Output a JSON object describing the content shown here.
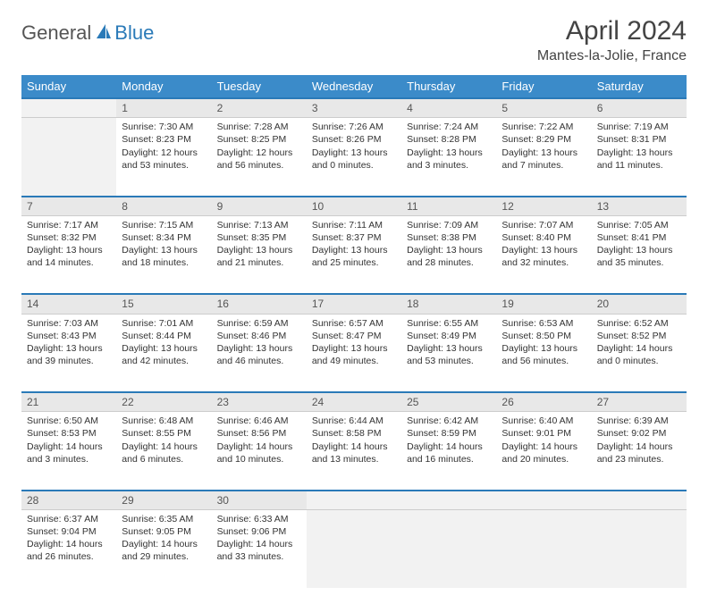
{
  "logo": {
    "text_general": "General",
    "text_blue": "Blue"
  },
  "title": "April 2024",
  "location": "Mantes-la-Jolie, France",
  "colors": {
    "header_bg": "#3b8bc9",
    "accent": "#2a7ab8",
    "daynum_bg": "#e8e8e8",
    "empty_bg": "#f2f2f2"
  },
  "weekdays": [
    "Sunday",
    "Monday",
    "Tuesday",
    "Wednesday",
    "Thursday",
    "Friday",
    "Saturday"
  ],
  "weeks": [
    [
      null,
      {
        "n": "1",
        "sr": "Sunrise: 7:30 AM",
        "ss": "Sunset: 8:23 PM",
        "dl1": "Daylight: 12 hours",
        "dl2": "and 53 minutes."
      },
      {
        "n": "2",
        "sr": "Sunrise: 7:28 AM",
        "ss": "Sunset: 8:25 PM",
        "dl1": "Daylight: 12 hours",
        "dl2": "and 56 minutes."
      },
      {
        "n": "3",
        "sr": "Sunrise: 7:26 AM",
        "ss": "Sunset: 8:26 PM",
        "dl1": "Daylight: 13 hours",
        "dl2": "and 0 minutes."
      },
      {
        "n": "4",
        "sr": "Sunrise: 7:24 AM",
        "ss": "Sunset: 8:28 PM",
        "dl1": "Daylight: 13 hours",
        "dl2": "and 3 minutes."
      },
      {
        "n": "5",
        "sr": "Sunrise: 7:22 AM",
        "ss": "Sunset: 8:29 PM",
        "dl1": "Daylight: 13 hours",
        "dl2": "and 7 minutes."
      },
      {
        "n": "6",
        "sr": "Sunrise: 7:19 AM",
        "ss": "Sunset: 8:31 PM",
        "dl1": "Daylight: 13 hours",
        "dl2": "and 11 minutes."
      }
    ],
    [
      {
        "n": "7",
        "sr": "Sunrise: 7:17 AM",
        "ss": "Sunset: 8:32 PM",
        "dl1": "Daylight: 13 hours",
        "dl2": "and 14 minutes."
      },
      {
        "n": "8",
        "sr": "Sunrise: 7:15 AM",
        "ss": "Sunset: 8:34 PM",
        "dl1": "Daylight: 13 hours",
        "dl2": "and 18 minutes."
      },
      {
        "n": "9",
        "sr": "Sunrise: 7:13 AM",
        "ss": "Sunset: 8:35 PM",
        "dl1": "Daylight: 13 hours",
        "dl2": "and 21 minutes."
      },
      {
        "n": "10",
        "sr": "Sunrise: 7:11 AM",
        "ss": "Sunset: 8:37 PM",
        "dl1": "Daylight: 13 hours",
        "dl2": "and 25 minutes."
      },
      {
        "n": "11",
        "sr": "Sunrise: 7:09 AM",
        "ss": "Sunset: 8:38 PM",
        "dl1": "Daylight: 13 hours",
        "dl2": "and 28 minutes."
      },
      {
        "n": "12",
        "sr": "Sunrise: 7:07 AM",
        "ss": "Sunset: 8:40 PM",
        "dl1": "Daylight: 13 hours",
        "dl2": "and 32 minutes."
      },
      {
        "n": "13",
        "sr": "Sunrise: 7:05 AM",
        "ss": "Sunset: 8:41 PM",
        "dl1": "Daylight: 13 hours",
        "dl2": "and 35 minutes."
      }
    ],
    [
      {
        "n": "14",
        "sr": "Sunrise: 7:03 AM",
        "ss": "Sunset: 8:43 PM",
        "dl1": "Daylight: 13 hours",
        "dl2": "and 39 minutes."
      },
      {
        "n": "15",
        "sr": "Sunrise: 7:01 AM",
        "ss": "Sunset: 8:44 PM",
        "dl1": "Daylight: 13 hours",
        "dl2": "and 42 minutes."
      },
      {
        "n": "16",
        "sr": "Sunrise: 6:59 AM",
        "ss": "Sunset: 8:46 PM",
        "dl1": "Daylight: 13 hours",
        "dl2": "and 46 minutes."
      },
      {
        "n": "17",
        "sr": "Sunrise: 6:57 AM",
        "ss": "Sunset: 8:47 PM",
        "dl1": "Daylight: 13 hours",
        "dl2": "and 49 minutes."
      },
      {
        "n": "18",
        "sr": "Sunrise: 6:55 AM",
        "ss": "Sunset: 8:49 PM",
        "dl1": "Daylight: 13 hours",
        "dl2": "and 53 minutes."
      },
      {
        "n": "19",
        "sr": "Sunrise: 6:53 AM",
        "ss": "Sunset: 8:50 PM",
        "dl1": "Daylight: 13 hours",
        "dl2": "and 56 minutes."
      },
      {
        "n": "20",
        "sr": "Sunrise: 6:52 AM",
        "ss": "Sunset: 8:52 PM",
        "dl1": "Daylight: 14 hours",
        "dl2": "and 0 minutes."
      }
    ],
    [
      {
        "n": "21",
        "sr": "Sunrise: 6:50 AM",
        "ss": "Sunset: 8:53 PM",
        "dl1": "Daylight: 14 hours",
        "dl2": "and 3 minutes."
      },
      {
        "n": "22",
        "sr": "Sunrise: 6:48 AM",
        "ss": "Sunset: 8:55 PM",
        "dl1": "Daylight: 14 hours",
        "dl2": "and 6 minutes."
      },
      {
        "n": "23",
        "sr": "Sunrise: 6:46 AM",
        "ss": "Sunset: 8:56 PM",
        "dl1": "Daylight: 14 hours",
        "dl2": "and 10 minutes."
      },
      {
        "n": "24",
        "sr": "Sunrise: 6:44 AM",
        "ss": "Sunset: 8:58 PM",
        "dl1": "Daylight: 14 hours",
        "dl2": "and 13 minutes."
      },
      {
        "n": "25",
        "sr": "Sunrise: 6:42 AM",
        "ss": "Sunset: 8:59 PM",
        "dl1": "Daylight: 14 hours",
        "dl2": "and 16 minutes."
      },
      {
        "n": "26",
        "sr": "Sunrise: 6:40 AM",
        "ss": "Sunset: 9:01 PM",
        "dl1": "Daylight: 14 hours",
        "dl2": "and 20 minutes."
      },
      {
        "n": "27",
        "sr": "Sunrise: 6:39 AM",
        "ss": "Sunset: 9:02 PM",
        "dl1": "Daylight: 14 hours",
        "dl2": "and 23 minutes."
      }
    ],
    [
      {
        "n": "28",
        "sr": "Sunrise: 6:37 AM",
        "ss": "Sunset: 9:04 PM",
        "dl1": "Daylight: 14 hours",
        "dl2": "and 26 minutes."
      },
      {
        "n": "29",
        "sr": "Sunrise: 6:35 AM",
        "ss": "Sunset: 9:05 PM",
        "dl1": "Daylight: 14 hours",
        "dl2": "and 29 minutes."
      },
      {
        "n": "30",
        "sr": "Sunrise: 6:33 AM",
        "ss": "Sunset: 9:06 PM",
        "dl1": "Daylight: 14 hours",
        "dl2": "and 33 minutes."
      },
      null,
      null,
      null,
      null
    ]
  ]
}
